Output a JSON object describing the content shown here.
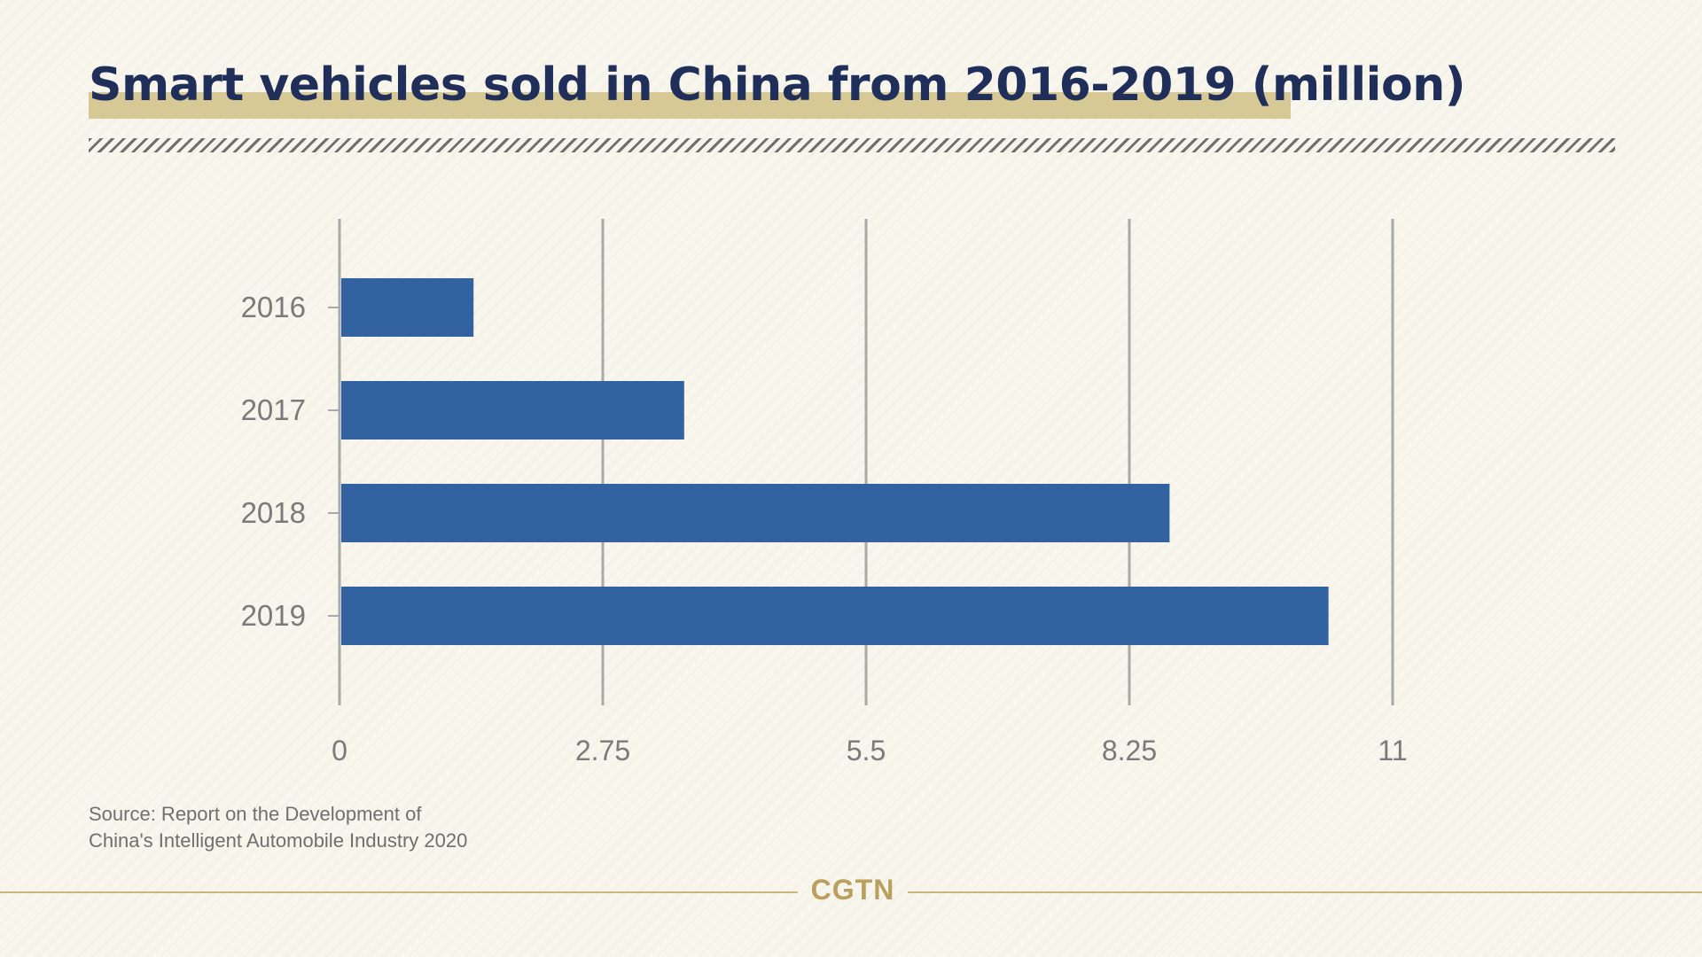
{
  "title": "Smart vehicles sold in China from 2016-2019 (million)",
  "source_line1": "Source: Report on the Development of",
  "source_line2": "China's Intelligent Automobile Industry 2020",
  "brand": "CGTN",
  "colors": {
    "bar": "#3262a0",
    "title": "#1f2f5a",
    "highlight": "#d7c996",
    "gridline": "#a9a9a9",
    "tick_text": "#7a7a7a",
    "brand": "#b9a05c"
  },
  "chart_data": {
    "type": "bar",
    "orientation": "horizontal",
    "title": "Smart vehicles sold in China from 2016-2019 (million)",
    "categories": [
      "2016",
      "2017",
      "2018",
      "2019"
    ],
    "values": [
      1.4,
      3.6,
      8.67,
      10.33
    ],
    "xlim": [
      0,
      11
    ],
    "xticks": [
      "0",
      "2.75",
      "5.5",
      "8.25",
      "11"
    ],
    "xtick_values": [
      0,
      2.75,
      5.5,
      8.25,
      11
    ],
    "grid": true,
    "xlabel": "",
    "ylabel": ""
  }
}
